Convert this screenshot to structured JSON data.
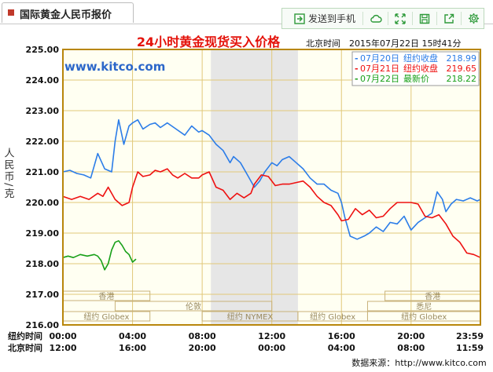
{
  "tab": {
    "title": "国际黄金人民币报价"
  },
  "toolbar": {
    "send_to_phone": "发送到手机"
  },
  "colors": {
    "accent_green": "#2e9a3a",
    "title_red": "#e4120a",
    "gold_axis": "#b8860b"
  },
  "icons": [
    "send-phone-icon",
    "cloud-icon",
    "expand-icon",
    "save-icon",
    "share-icon",
    "gear-icon"
  ],
  "chart_data": {
    "type": "line",
    "title": "24小时黄金现货买入价格",
    "watermark": "www.kitco.com",
    "timestamp": "北京时间　2015年07月22日 15时41分",
    "ylabel": "人民币/克",
    "ylim": [
      216.0,
      225.0
    ],
    "yticks": [
      "225.00",
      "224.00",
      "223.00",
      "222.00",
      "221.00",
      "220.00",
      "219.00",
      "218.00",
      "217.00",
      "216.00"
    ],
    "x_axis_rows": [
      {
        "label": "纽约时间",
        "ticks": [
          "00:00",
          "04:00",
          "08:00",
          "12:00",
          "16:00",
          "20:00",
          "23:59"
        ]
      },
      {
        "label": "北京时间",
        "ticks": [
          "12:00",
          "16:00",
          "20:00",
          "00:00",
          "04:00",
          "08:00",
          "11:59"
        ]
      }
    ],
    "tick_hours": [
      0,
      4,
      8,
      12,
      16,
      20,
      23.983
    ],
    "shaded_range_hours": [
      8.5,
      13.5
    ],
    "sessions": [
      {
        "label": "香港",
        "start": 0,
        "end": 5.0,
        "row": 0
      },
      {
        "label": "伦敦",
        "start": 3.0,
        "end": 12.0,
        "row": 1
      },
      {
        "label": "纽约 Globex",
        "start": 0,
        "end": 5.0,
        "row": 2
      },
      {
        "label": "纽约 NYMEX",
        "start": 8.0,
        "end": 13.5,
        "row": 2
      },
      {
        "label": "纽约 Globex",
        "start": 13.5,
        "end": 17.5,
        "row": 2
      },
      {
        "label": "香港",
        "start": 18.5,
        "end": 23.983,
        "row": 0
      },
      {
        "label": "悉尼",
        "start": 17.5,
        "end": 23.983,
        "row": 1
      },
      {
        "label": "纽约 Globex",
        "start": 17.5,
        "end": 23.983,
        "row": 2
      }
    ],
    "legend": [
      {
        "prefix": "07月20日",
        "kind": "纽约收盘",
        "value": "218.99",
        "color": "#2c7de8"
      },
      {
        "prefix": "07月21日",
        "kind": "纽约收盘",
        "value": "219.65",
        "color": "#ee1111"
      },
      {
        "prefix": "07月22日",
        "kind": "最新价",
        "value": "218.22",
        "color": "#19a019"
      }
    ],
    "series": [
      {
        "name": "07月20日",
        "color": "#2c7de8",
        "x": [
          0,
          0.4,
          0.8,
          1.2,
          1.6,
          2.0,
          2.4,
          2.8,
          3.0,
          3.2,
          3.5,
          3.8,
          4.0,
          4.3,
          4.6,
          5.0,
          5.3,
          5.6,
          6.0,
          6.5,
          7.0,
          7.4,
          7.8,
          8.0,
          8.4,
          8.8,
          9.2,
          9.6,
          9.8,
          10.2,
          10.6,
          11.0,
          11.3,
          11.6,
          12.0,
          12.3,
          12.6,
          13.0,
          13.4,
          13.8,
          14.2,
          14.6,
          15.0,
          15.4,
          15.8,
          16.0,
          16.2,
          16.5,
          16.9,
          17.3,
          17.6,
          18.0,
          18.4,
          18.8,
          19.2,
          19.6,
          20.0,
          20.4,
          20.8,
          21.2,
          21.5,
          21.8,
          22.0,
          22.3,
          22.6,
          23.0,
          23.4,
          23.8,
          23.983
        ],
        "y": [
          221.0,
          221.05,
          220.95,
          220.9,
          220.8,
          221.6,
          221.1,
          221.0,
          222.0,
          222.7,
          221.9,
          222.5,
          222.6,
          222.7,
          222.4,
          222.55,
          222.6,
          222.45,
          222.6,
          222.4,
          222.2,
          222.5,
          222.3,
          222.35,
          222.2,
          221.9,
          221.7,
          221.3,
          221.5,
          221.3,
          220.9,
          220.5,
          220.7,
          221.0,
          221.3,
          221.2,
          221.4,
          221.5,
          221.3,
          221.1,
          220.8,
          220.6,
          220.6,
          220.4,
          220.3,
          220.0,
          219.5,
          218.9,
          218.8,
          218.9,
          219.0,
          219.2,
          219.05,
          219.35,
          219.3,
          219.55,
          219.1,
          219.35,
          219.5,
          219.65,
          220.35,
          220.1,
          219.7,
          219.95,
          220.1,
          220.05,
          220.15,
          220.05,
          220.1
        ]
      },
      {
        "name": "07月21日",
        "color": "#ee1111",
        "x": [
          0,
          0.5,
          1.0,
          1.5,
          2.0,
          2.3,
          2.6,
          3.0,
          3.4,
          3.8,
          4.0,
          4.3,
          4.6,
          5.0,
          5.3,
          5.6,
          6.0,
          6.3,
          6.6,
          7.0,
          7.4,
          7.8,
          8.0,
          8.4,
          8.8,
          9.2,
          9.6,
          10.0,
          10.4,
          10.8,
          11.0,
          11.4,
          11.8,
          12.2,
          12.6,
          13.0,
          13.4,
          13.8,
          14.2,
          14.6,
          15.0,
          15.4,
          15.8,
          16.0,
          16.4,
          16.8,
          17.2,
          17.6,
          18.0,
          18.4,
          18.8,
          19.2,
          19.6,
          20.0,
          20.4,
          20.8,
          21.2,
          21.6,
          22.0,
          22.4,
          22.8,
          23.2,
          23.6,
          23.983
        ],
        "y": [
          220.2,
          220.1,
          220.2,
          220.1,
          220.3,
          220.2,
          220.5,
          220.1,
          219.9,
          220.0,
          220.5,
          221.0,
          220.85,
          220.9,
          221.05,
          221.0,
          221.1,
          220.9,
          220.8,
          220.95,
          220.8,
          220.8,
          220.9,
          221.0,
          220.5,
          220.4,
          220.1,
          220.3,
          220.15,
          220.3,
          220.6,
          220.9,
          220.85,
          220.55,
          220.6,
          220.6,
          220.65,
          220.7,
          220.5,
          220.2,
          220.0,
          219.9,
          219.6,
          219.4,
          219.45,
          219.8,
          219.6,
          219.75,
          219.5,
          219.55,
          219.8,
          220.0,
          220.0,
          220.0,
          219.95,
          219.55,
          219.5,
          219.6,
          219.3,
          218.9,
          218.7,
          218.35,
          218.3,
          218.2
        ]
      },
      {
        "name": "07月22日",
        "color": "#19a019",
        "x": [
          0,
          0.3,
          0.6,
          1.0,
          1.4,
          1.8,
          2.0,
          2.2,
          2.4,
          2.6,
          2.8,
          3.0,
          3.2,
          3.4,
          3.6,
          3.8,
          4.0,
          4.2
        ],
        "y": [
          218.2,
          218.25,
          218.2,
          218.3,
          218.25,
          218.3,
          218.25,
          218.1,
          217.8,
          218.0,
          218.45,
          218.7,
          218.75,
          218.6,
          218.4,
          218.3,
          218.05,
          218.15
        ]
      }
    ],
    "source": "数据来源：http://www.kitco.com"
  }
}
